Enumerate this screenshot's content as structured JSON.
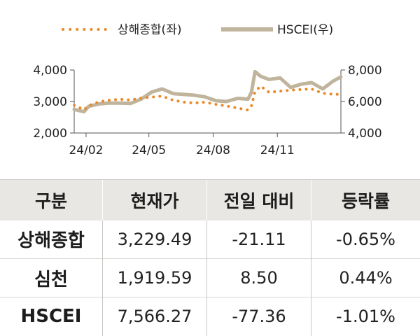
{
  "chart_data": {
    "type": "line",
    "legend": {
      "placement": "top-center",
      "entries": [
        "상해종합(좌)",
        "HSCEI(우)"
      ]
    },
    "x_ticks": [
      "24/02",
      "24/05",
      "24/08",
      "24/11"
    ],
    "y_left": {
      "range": [
        2000,
        4000
      ],
      "ticks": [
        "2,000",
        "3,000",
        "4,000"
      ]
    },
    "y_right": {
      "range": [
        4000,
        8000
      ],
      "ticks": [
        "4,000",
        "6,000",
        "8,000"
      ]
    },
    "grid": false,
    "series": [
      {
        "name": "상해종합(좌)",
        "axis": "left",
        "color": "#e98a2a",
        "style": "dotted",
        "x": [
          "2024-01-15",
          "2024-01-29",
          "2024-02-05",
          "2024-02-20",
          "2024-03-05",
          "2024-03-20",
          "2024-04-05",
          "2024-04-20",
          "2024-05-05",
          "2024-05-20",
          "2024-06-05",
          "2024-06-20",
          "2024-07-05",
          "2024-07-20",
          "2024-08-05",
          "2024-08-20",
          "2024-09-05",
          "2024-09-20",
          "2024-09-25",
          "2024-09-30",
          "2024-10-08",
          "2024-10-20",
          "2024-11-05",
          "2024-11-20",
          "2024-12-05",
          "2024-12-20",
          "2025-01-05",
          "2025-01-20",
          "2025-01-31"
        ],
        "y": [
          2880,
          2740,
          2870,
          2990,
          3040,
          3070,
          3050,
          3110,
          3140,
          3170,
          3040,
          2980,
          2950,
          2980,
          2910,
          2860,
          2790,
          2730,
          2870,
          3310,
          3490,
          3290,
          3330,
          3360,
          3380,
          3400,
          3260,
          3230,
          3229
        ]
      },
      {
        "name": "HSCEI(우)",
        "axis": "right",
        "color": "#c0b49c",
        "style": "solid",
        "x": [
          "2024-01-15",
          "2024-01-29",
          "2024-02-05",
          "2024-02-20",
          "2024-03-05",
          "2024-03-20",
          "2024-04-05",
          "2024-04-20",
          "2024-05-05",
          "2024-05-20",
          "2024-06-05",
          "2024-06-20",
          "2024-07-05",
          "2024-07-20",
          "2024-08-05",
          "2024-08-20",
          "2024-09-05",
          "2024-09-20",
          "2024-09-25",
          "2024-09-30",
          "2024-10-08",
          "2024-10-20",
          "2024-11-05",
          "2024-11-20",
          "2024-12-05",
          "2024-12-20",
          "2025-01-05",
          "2025-01-20",
          "2025-01-31"
        ],
        "y": [
          5500,
          5350,
          5700,
          5850,
          5900,
          5900,
          5880,
          6150,
          6600,
          6800,
          6500,
          6450,
          6400,
          6300,
          6050,
          6000,
          6200,
          6150,
          6600,
          7900,
          7600,
          7400,
          7500,
          6900,
          7100,
          7200,
          6800,
          7300,
          7566
        ]
      }
    ]
  },
  "table": {
    "headers": [
      "구분",
      "현재가",
      "전일 대비",
      "등락률"
    ],
    "rows": [
      [
        "상해종합",
        "3,229.49",
        "-21.11",
        "-0.65%"
      ],
      [
        "심천",
        "1,919.59",
        "8.50",
        "0.44%"
      ],
      [
        "HSCEI",
        "7,566.27",
        "-77.36",
        "-1.01%"
      ]
    ]
  }
}
